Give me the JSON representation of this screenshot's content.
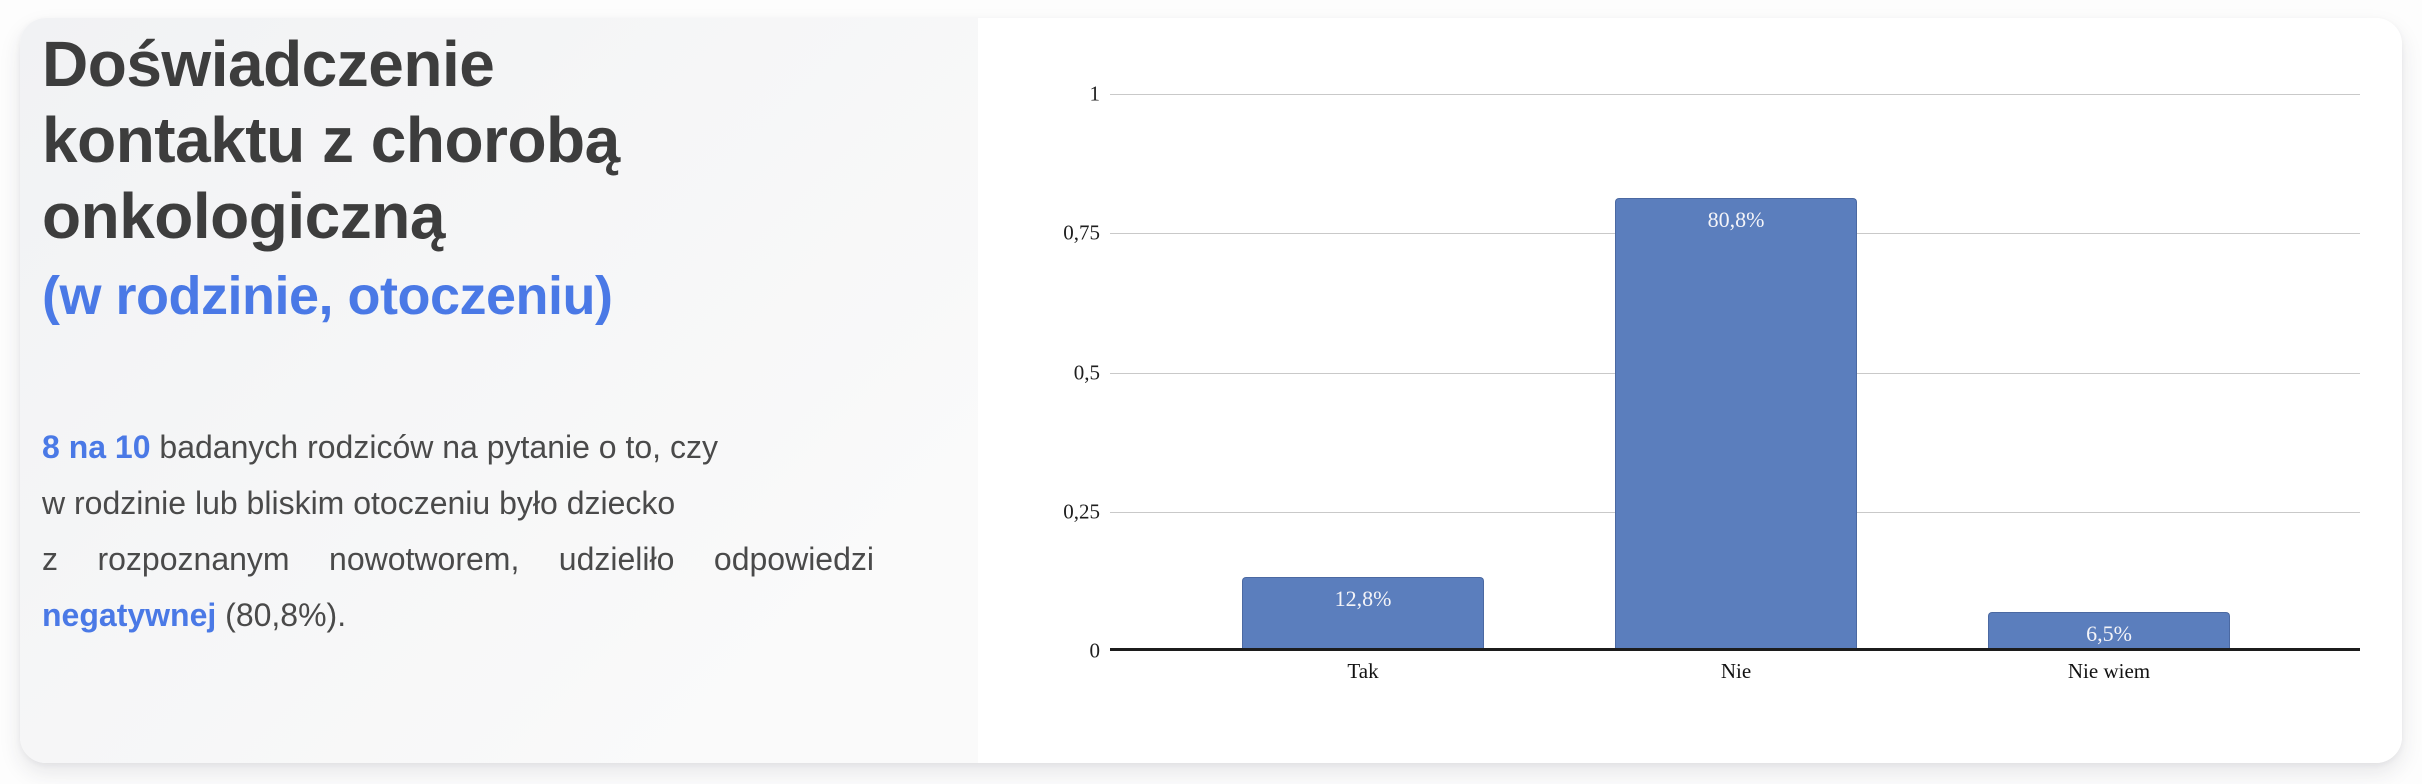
{
  "panel": {
    "title_lines": [
      "Doświadczenie",
      "kontaktu z chorobą",
      "onkologiczną"
    ],
    "subtitle": "(w rodzinie, otoczeniu)",
    "paragraph": {
      "line1_highlight": "8 na 10",
      "line1_rest": " badanych rodziców na pytanie o to, czy",
      "line2": "w rodzinie lub bliskim otoczeniu było dziecko",
      "line3": "z rozpoznanym nowotworem, udzieliło odpowiedzi",
      "line4_highlight": "negatywnej",
      "line4_rest": " (80,8%)."
    }
  },
  "colors": {
    "accent_blue": "#4a79e6",
    "heading": "#3d3d3d",
    "body_text": "#4a4a4a",
    "bar_fill": "#5b7ebd",
    "bar_border": "#4b69a2",
    "grid": "#c9c9c9",
    "axis": "#1c1c1c",
    "label_on_bar": "#f4f4f8"
  },
  "chart_data": {
    "type": "bar",
    "categories": [
      "Tak",
      "Nie",
      "Nie wiem"
    ],
    "values": [
      0.128,
      0.808,
      0.065
    ],
    "bar_labels": [
      "12,8%",
      "80,8%",
      "6,5%"
    ],
    "y_ticks": [
      {
        "value": 0,
        "label": "0"
      },
      {
        "value": 0.25,
        "label": "0,25"
      },
      {
        "value": 0.5,
        "label": "0,5"
      },
      {
        "value": 0.75,
        "label": "0,75"
      },
      {
        "value": 1,
        "label": "1"
      }
    ],
    "ylim": [
      0,
      1
    ],
    "grid": true,
    "legend": false,
    "title": "",
    "xlabel": "",
    "ylabel": ""
  }
}
